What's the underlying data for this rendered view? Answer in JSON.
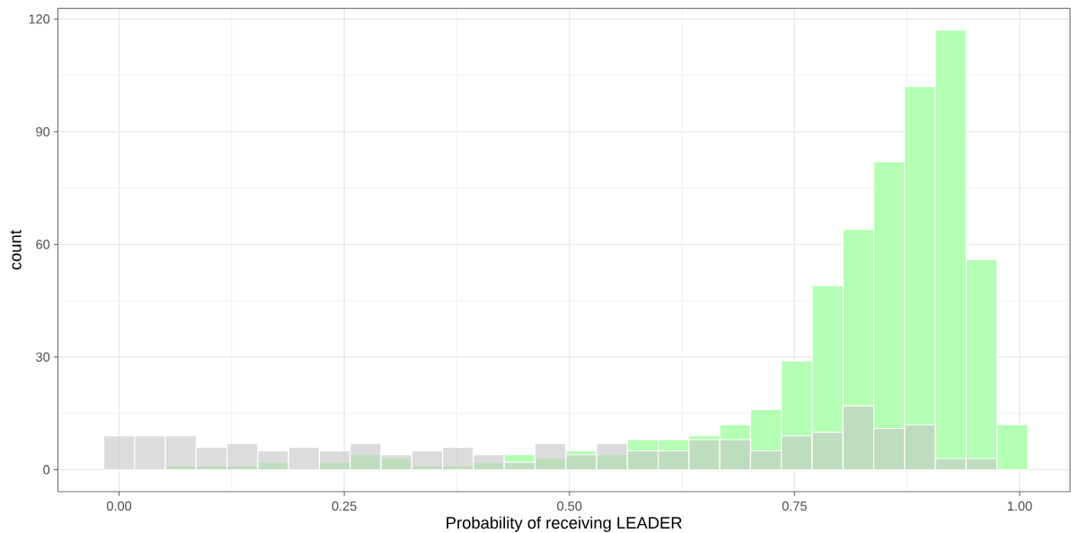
{
  "chart_data": {
    "type": "histogram",
    "xlabel": "Probability of receiving LEADER",
    "ylabel": "count",
    "bins": [
      -0.017,
      0.0172,
      0.0514,
      0.0856,
      0.1198,
      0.154,
      0.1882,
      0.2224,
      0.2566,
      0.2908,
      0.325,
      0.3592,
      0.3934,
      0.4276,
      0.4618,
      0.496,
      0.5302,
      0.5644,
      0.5986,
      0.6328,
      0.667,
      0.7012,
      0.7354,
      0.7696,
      0.8038,
      0.838,
      0.8722,
      0.9064,
      0.9406,
      0.9748,
      1.009
    ],
    "series": [
      {
        "color": "#b3ffb3",
        "values": [
          0,
          0,
          1,
          1,
          1,
          2,
          0,
          2,
          4,
          3,
          1,
          1,
          2,
          4,
          3,
          5,
          4,
          8,
          8,
          9,
          12,
          16,
          29,
          49,
          64,
          82,
          102,
          117,
          56,
          12
        ]
      },
      {
        "color": "#dcdcdc",
        "values": [
          9,
          9,
          9,
          6,
          7,
          5,
          6,
          5,
          7,
          4,
          5,
          6,
          4,
          2,
          7,
          4,
          7,
          5,
          5,
          8,
          8,
          5,
          9,
          10,
          17,
          11,
          12,
          3,
          3,
          0
        ]
      }
    ],
    "xlim": [
      -0.068,
      1.056
    ],
    "ylim": [
      -5.85,
      122.85
    ],
    "xticks": [
      {
        "value": 0,
        "label": "0.00"
      },
      {
        "value": 0.25,
        "label": "0.25"
      },
      {
        "value": 0.5,
        "label": "0.50"
      },
      {
        "value": 0.75,
        "label": "0.75"
      },
      {
        "value": 1,
        "label": "1.00"
      }
    ],
    "yticks": [
      0,
      30,
      60,
      90,
      120
    ],
    "grid": true
  }
}
